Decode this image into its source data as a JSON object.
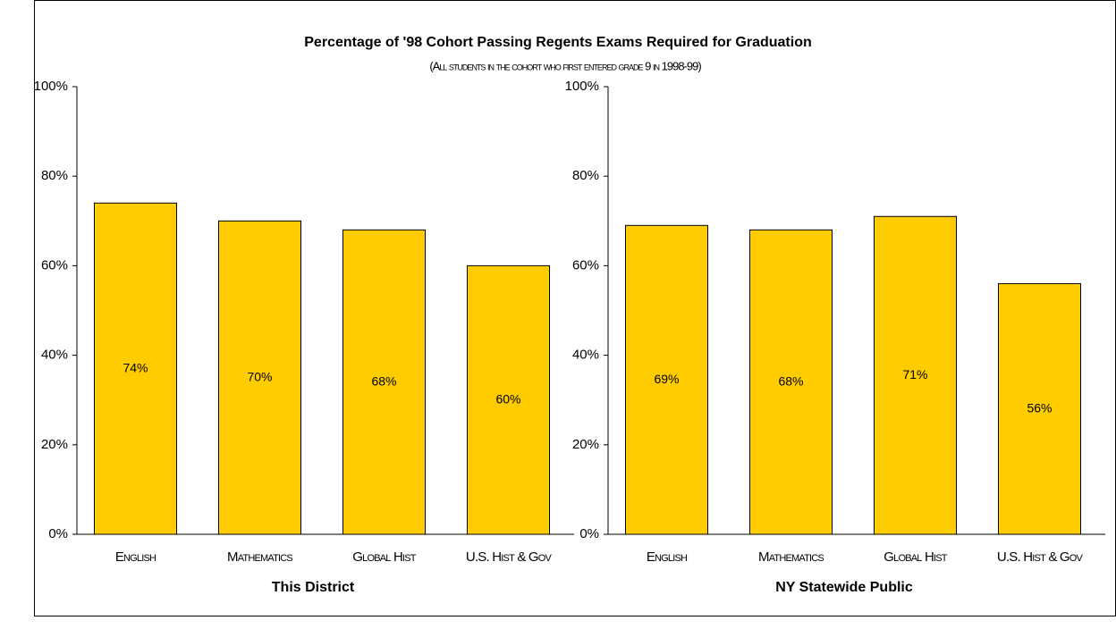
{
  "title": "Percentage of '98 Cohort Passing Regents Exams Required for Graduation",
  "subtitle": "(All students in the cohort who first entered grade 9 in 1998-99)",
  "chart_data": [
    {
      "type": "bar",
      "xlabel": "This District",
      "categories": [
        "English",
        "Mathematics",
        "Global Hist",
        "U.S. Hist & Gov"
      ],
      "values": [
        74,
        70,
        68,
        60
      ],
      "value_labels": [
        "74%",
        "70%",
        "68%",
        "60%"
      ],
      "color": "#ffcc00",
      "ylim": [
        0,
        100
      ],
      "yticks": [
        {
          "value": 0,
          "label": "0%"
        },
        {
          "value": 20,
          "label": "20%"
        },
        {
          "value": 40,
          "label": "40%"
        },
        {
          "value": 60,
          "label": "60%"
        },
        {
          "value": 80,
          "label": "80%"
        },
        {
          "value": 100,
          "label": "100%"
        }
      ]
    },
    {
      "type": "bar",
      "xlabel": "NY Statewide Public",
      "categories": [
        "English",
        "Mathematics",
        "Global Hist",
        "U.S. Hist & Gov"
      ],
      "values": [
        69,
        68,
        71,
        56
      ],
      "value_labels": [
        "69%",
        "68%",
        "71%",
        "56%"
      ],
      "color": "#ffcc00",
      "ylim": [
        0,
        100
      ],
      "yticks": [
        {
          "value": 0,
          "label": "0%"
        },
        {
          "value": 20,
          "label": "20%"
        },
        {
          "value": 40,
          "label": "40%"
        },
        {
          "value": 60,
          "label": "60%"
        },
        {
          "value": 80,
          "label": "80%"
        },
        {
          "value": 100,
          "label": "100%"
        }
      ]
    }
  ]
}
